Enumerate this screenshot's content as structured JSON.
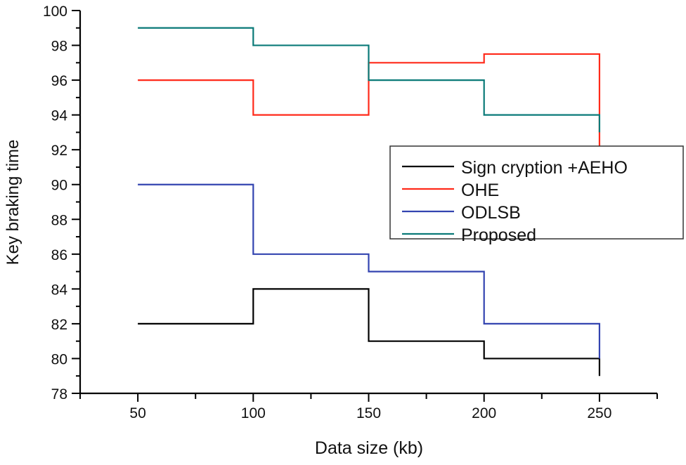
{
  "chart_data": {
    "type": "line",
    "step": "post",
    "title": "",
    "xlabel": "Data size (kb)",
    "ylabel": "Key braking time",
    "xlim": [
      25,
      275
    ],
    "ylim": [
      78,
      100
    ],
    "xticks": [
      50,
      100,
      150,
      200,
      250
    ],
    "yticks": [
      78,
      80,
      82,
      84,
      86,
      88,
      90,
      92,
      94,
      96,
      98,
      100
    ],
    "grid": false,
    "legend_position": "right",
    "x": [
      50,
      100,
      150,
      200,
      250
    ],
    "series": [
      {
        "name": "Sign cryption +AEHO",
        "color": "#000000",
        "values": [
          82,
          84,
          81,
          80,
          79
        ]
      },
      {
        "name": "OHE",
        "color": "#ff2a1a",
        "values": [
          96,
          94,
          97,
          97.5,
          92
        ]
      },
      {
        "name": "ODLSB",
        "color": "#3344b0",
        "values": [
          90,
          86,
          85,
          82,
          80
        ]
      },
      {
        "name": "Proposed",
        "color": "#0a7a78",
        "values": [
          99,
          98,
          96,
          94,
          93
        ]
      }
    ]
  }
}
